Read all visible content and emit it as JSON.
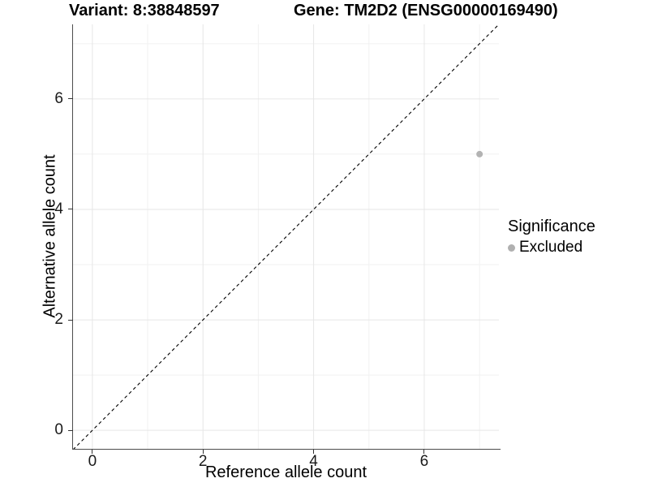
{
  "titles": {
    "variant": "Variant: 8:38848597",
    "gene": "Gene: TM2D2 (ENSG00000169490)"
  },
  "chart_data": {
    "type": "scatter",
    "xlabel": "Reference allele count",
    "ylabel": "Alternative allele count",
    "xlim": [
      -0.35,
      7.35
    ],
    "ylim": [
      -0.35,
      7.35
    ],
    "x_major_ticks": [
      0,
      2,
      4,
      6
    ],
    "y_major_ticks": [
      0,
      2,
      4,
      6
    ],
    "x_minor_ticks": [
      1,
      3,
      5,
      7
    ],
    "y_minor_ticks": [
      1,
      3,
      5,
      7
    ],
    "grid": true,
    "points": [
      {
        "x": 7,
        "y": 5,
        "series": "Excluded"
      }
    ],
    "reference_line": {
      "type": "identity",
      "style": "dashed",
      "color": "#000000"
    },
    "legend": {
      "title": "Significance",
      "position": "right",
      "entries": [
        {
          "label": "Excluded",
          "color": "#b0b0b0"
        }
      ]
    },
    "colors": {
      "point": "#b3b3b3",
      "grid_major": "#e6e6e6",
      "grid_minor": "#f1f1f1",
      "axis_line": "#4d4d4d",
      "tick_mark": "#333333"
    }
  }
}
